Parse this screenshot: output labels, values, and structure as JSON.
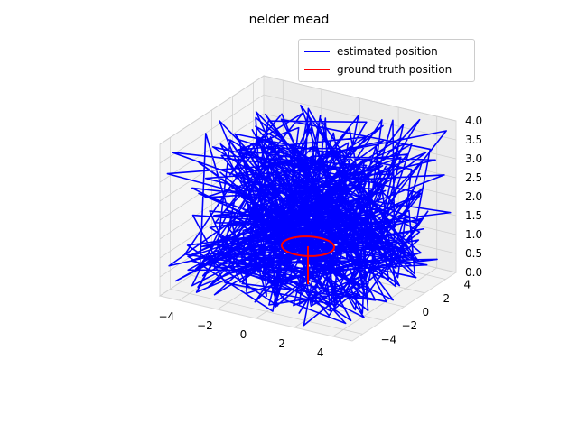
{
  "chart_data": {
    "type": "line",
    "projection": "3d",
    "title": "nelder mead",
    "xlabel": "",
    "ylabel": "",
    "zlabel": "",
    "xlim": [
      -5,
      5
    ],
    "ylim": [
      -5,
      5
    ],
    "zlim": [
      0,
      4
    ],
    "x_ticks": [
      "−4",
      "−2",
      "0",
      "2",
      "4"
    ],
    "y_ticks": [
      "−4",
      "−2",
      "0",
      "2",
      "4"
    ],
    "z_ticks": [
      "0.0",
      "0.5",
      "1.0",
      "1.5",
      "2.0",
      "2.5",
      "3.0",
      "3.5",
      "4.0"
    ],
    "grid": true,
    "legend_position": "top-right",
    "series": [
      {
        "name": "estimated position",
        "color": "#0000ff",
        "description_of_values": "several hundred scattered points filling x,y in [-5,5], z in [0,4]"
      },
      {
        "name": "ground truth position",
        "color": "#ff0000",
        "path": "vertical segment at x=0,y=0 from z=0 to z=1, then circle of radius 1 at z=1"
      }
    ]
  }
}
